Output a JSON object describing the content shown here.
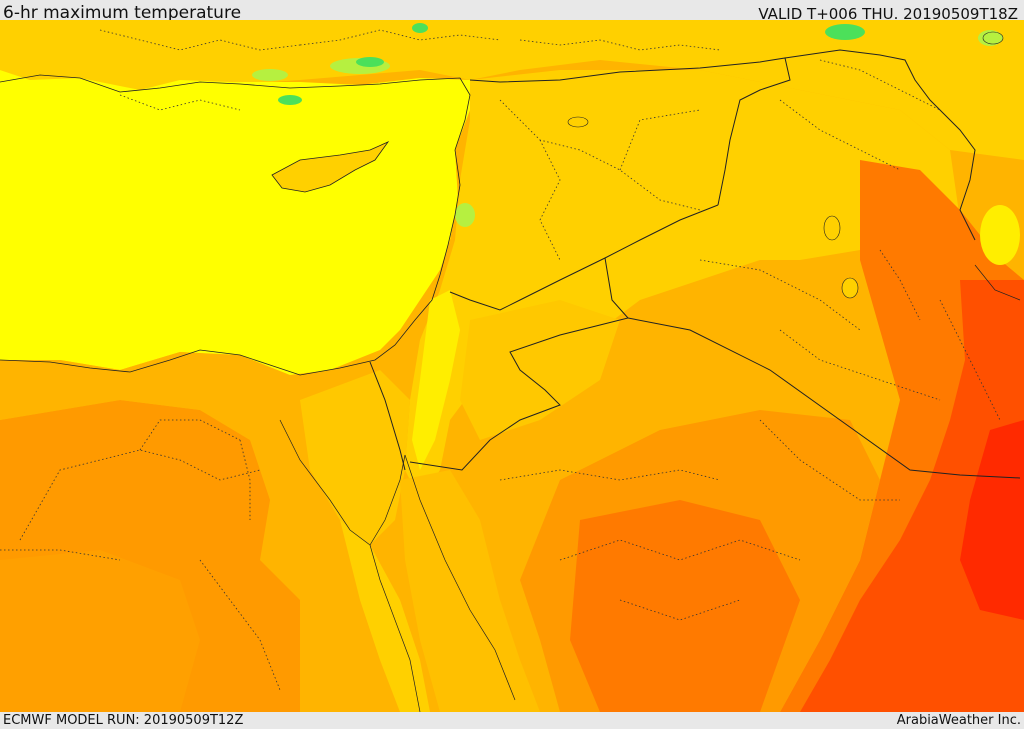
{
  "header": {
    "title": "6-hr maximum temperature",
    "valid_time": "VALID T+006 THU. 20190509T18Z"
  },
  "footer": {
    "model_run": "ECMWF MODEL RUN: 20190509T12Z",
    "credit": "ArabiaWeather Inc."
  },
  "map": {
    "palette": {
      "sea": "#ffff00",
      "pale_yellow": "#ffee00",
      "yellow_orange": "#ffd000",
      "light_orange": "#ffb400",
      "orange": "#ff9a00",
      "deep_orange": "#ff7a00",
      "orange_red": "#ff5000",
      "red": "#ff2a00",
      "green": "#4ce05a",
      "light_green": "#b6f040"
    }
  }
}
